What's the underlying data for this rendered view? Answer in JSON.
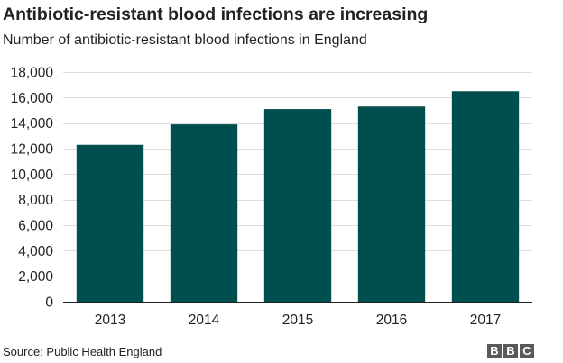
{
  "title": "Antibiotic-resistant blood infections are increasing",
  "subtitle": "Number of antibiotic-resistant blood infections in England",
  "source": "Source: Public Health England",
  "logo": {
    "letters": [
      "B",
      "B",
      "C"
    ]
  },
  "colors": {
    "bar": "#004e4d",
    "grid": "#dddddd",
    "axis": "#222222",
    "logo_bg": "#5a5a5a"
  },
  "chart_data": {
    "type": "bar",
    "categories": [
      "2013",
      "2014",
      "2015",
      "2016",
      "2017"
    ],
    "values": [
      12300,
      13900,
      15100,
      15300,
      16500
    ],
    "ylim": [
      0,
      18000
    ],
    "yticks": [
      0,
      2000,
      4000,
      6000,
      8000,
      10000,
      12000,
      14000,
      16000,
      18000
    ],
    "ytick_labels": [
      "0",
      "2,000",
      "4,000",
      "6,000",
      "8,000",
      "10,000",
      "12,000",
      "14,000",
      "16,000",
      "18,000"
    ],
    "xlabel": "",
    "ylabel": "",
    "grid": true,
    "legend": "none"
  }
}
